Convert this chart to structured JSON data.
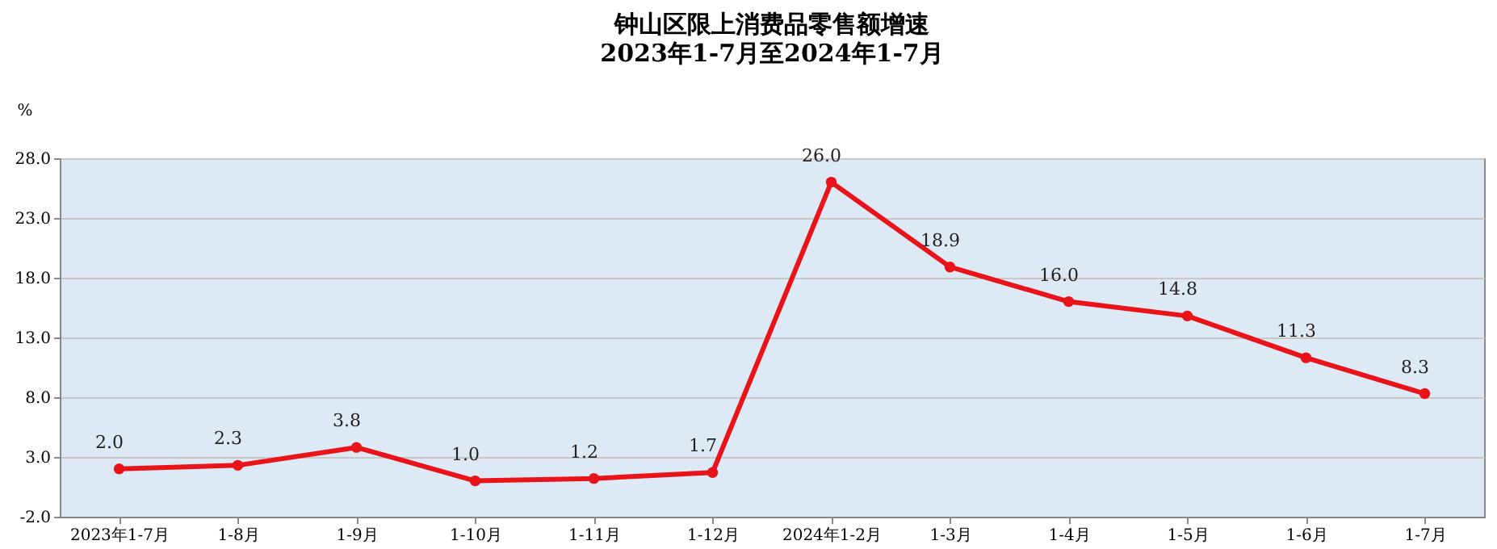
{
  "chart_data": {
    "type": "line",
    "title": "钟山区限上消费品零售额增速",
    "subtitle": "2023年1-7月至2024年1-7月",
    "ylabel": "%",
    "categories": [
      "2023年1-7月",
      "1-8月",
      "1-9月",
      "1-10月",
      "1-11月",
      "1-12月",
      "2024年1-2月",
      "1-3月",
      "1-4月",
      "1-5月",
      "1-6月",
      "1-7月"
    ],
    "series": [
      {
        "color": "#e8141a",
        "values": [
          2.0,
          2.3,
          3.8,
          1.0,
          1.2,
          1.7,
          26.0,
          18.9,
          16.0,
          14.8,
          11.3,
          8.3
        ],
        "value_labels": [
          "2.0",
          "2.3",
          "3.8",
          "1.0",
          "1.2",
          "1.7",
          "26.0",
          "18.9",
          "16.0",
          "14.8",
          "11.3",
          "8.3"
        ]
      }
    ],
    "ylim": [
      -2.0,
      28.0
    ],
    "yticks": [
      {
        "value": -2,
        "label": "-2.0"
      },
      {
        "value": 3,
        "label": "3.0"
      },
      {
        "value": 8,
        "label": "8.0"
      },
      {
        "value": 13,
        "label": "13.0"
      },
      {
        "value": 18,
        "label": "18.0"
      },
      {
        "value": 23,
        "label": "23.0"
      },
      {
        "value": 28,
        "label": "28.0"
      }
    ],
    "grid": "y",
    "marker": "circle",
    "line_style": "solid"
  }
}
